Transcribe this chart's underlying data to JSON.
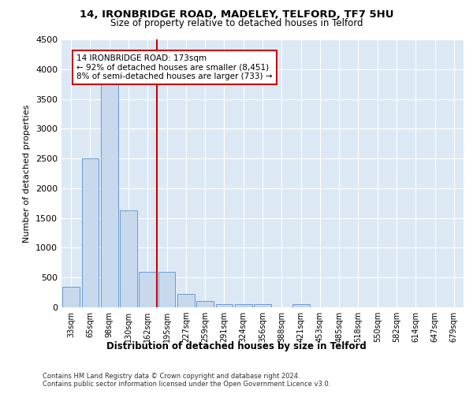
{
  "title_line1": "14, IRONBRIDGE ROAD, MADELEY, TELFORD, TF7 5HU",
  "title_line2": "Size of property relative to detached houses in Telford",
  "xlabel": "Distribution of detached houses by size in Telford",
  "ylabel": "Number of detached properties",
  "categories": [
    "33sqm",
    "65sqm",
    "98sqm",
    "130sqm",
    "162sqm",
    "195sqm",
    "227sqm",
    "259sqm",
    "291sqm",
    "324sqm",
    "356sqm",
    "388sqm",
    "421sqm",
    "453sqm",
    "485sqm",
    "518sqm",
    "550sqm",
    "582sqm",
    "614sqm",
    "647sqm",
    "679sqm"
  ],
  "values": [
    350,
    2500,
    3750,
    1625,
    600,
    600,
    230,
    110,
    55,
    55,
    55,
    0,
    55,
    0,
    0,
    0,
    0,
    0,
    0,
    0,
    0
  ],
  "bar_color": "#c8d9ee",
  "bar_edge_color": "#5b8fc9",
  "vline_color": "#cc0000",
  "annotation_text": "14 IRONBRIDGE ROAD: 173sqm\n← 92% of detached houses are smaller (8,451)\n8% of semi-detached houses are larger (733) →",
  "annotation_box_color": "white",
  "annotation_box_edge": "#cc0000",
  "ylim": [
    0,
    4500
  ],
  "yticks": [
    0,
    500,
    1000,
    1500,
    2000,
    2500,
    3000,
    3500,
    4000,
    4500
  ],
  "footer_line1": "Contains HM Land Registry data © Crown copyright and database right 2024.",
  "footer_line2": "Contains public sector information licensed under the Open Government Licence v3.0.",
  "plot_bg_color": "#dce9f5"
}
